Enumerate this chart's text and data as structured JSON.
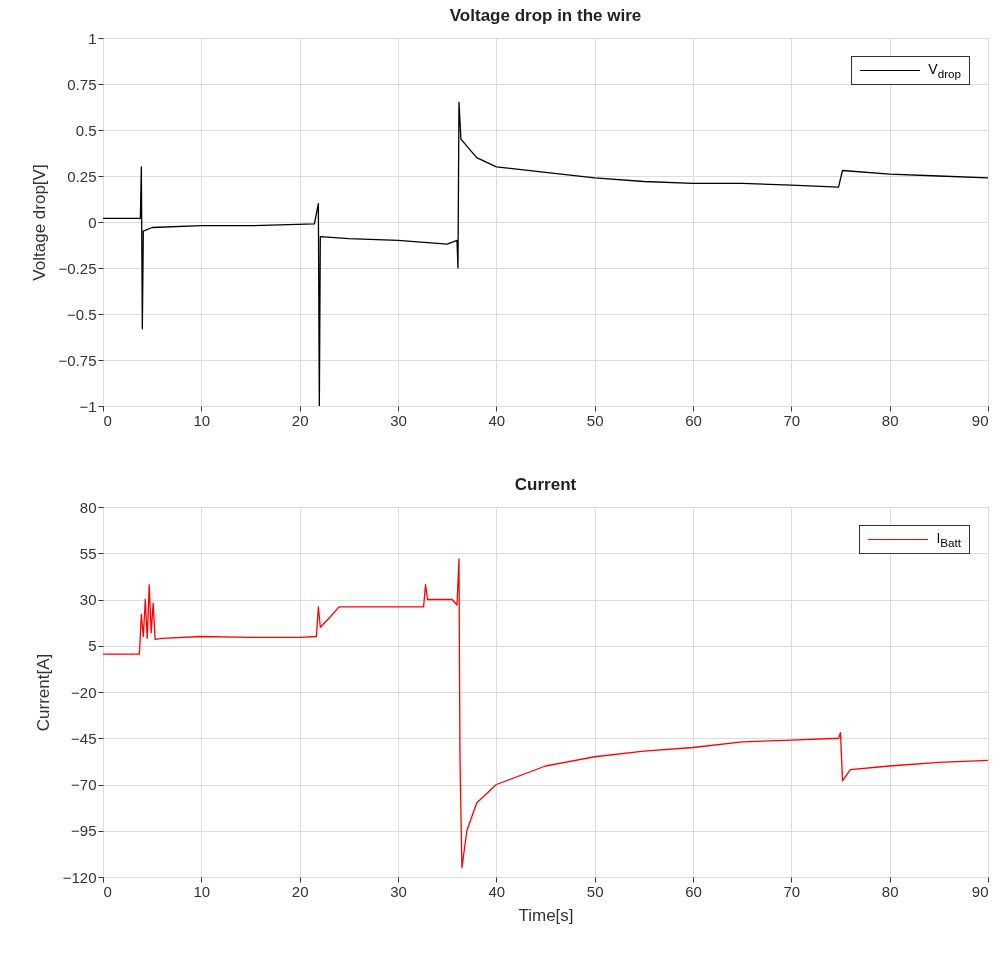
{
  "chart_data": [
    {
      "type": "line",
      "title": "Voltage drop in the wire",
      "ylabel": "Voltage drop[V]",
      "xlim": [
        0,
        90
      ],
      "xticks": [
        0,
        10,
        20,
        30,
        40,
        50,
        60,
        70,
        80,
        90
      ],
      "ylim": [
        -1,
        1
      ],
      "yticks": [
        -1,
        -0.75,
        -0.5,
        -0.25,
        0,
        0.25,
        0.5,
        0.75,
        1
      ],
      "grid": true,
      "legend": "top right",
      "series": [
        {
          "name": "V$_{drop}$",
          "color": "#000000",
          "x": [
            0,
            3.8,
            3.9,
            4.0,
            4.1,
            5,
            10,
            15,
            21.5,
            21.9,
            22.0,
            22.1,
            25,
            30,
            35,
            36.0,
            36.1,
            36.2,
            36.4,
            38,
            40,
            45,
            50,
            55,
            60,
            65,
            70,
            74.8,
            75.2,
            80,
            85,
            90
          ],
          "values": [
            0.02,
            0.02,
            0.3,
            -0.58,
            -0.05,
            -0.03,
            -0.02,
            -0.02,
            -0.01,
            0.1,
            -1,
            -0.08,
            -0.09,
            -0.1,
            -0.12,
            -0.1,
            -0.25,
            0.65,
            0.45,
            0.35,
            0.3,
            0.27,
            0.24,
            0.22,
            0.21,
            0.21,
            0.2,
            0.19,
            0.28,
            0.26,
            0.25,
            0.24
          ]
        }
      ]
    },
    {
      "type": "line",
      "title": "Current",
      "xlabel": "Time[s]",
      "ylabel": "Current[A]",
      "xlim": [
        0,
        90
      ],
      "xticks": [
        0,
        10,
        20,
        30,
        40,
        50,
        60,
        70,
        80,
        90
      ],
      "ylim": [
        -120,
        80
      ],
      "yticks": [
        -120,
        -95,
        -70,
        -45,
        -20,
        5,
        30,
        55,
        80
      ],
      "grid": true,
      "legend": "top right",
      "series": [
        {
          "name": "I$_{Batt}$",
          "color": "#ff0000",
          "x": [
            0,
            3.7,
            3.9,
            4.1,
            4.3,
            4.5,
            4.7,
            4.9,
            5.1,
            5.3,
            6,
            10,
            15,
            20,
            21.7,
            21.9,
            22.1,
            23,
            24,
            25,
            30,
            32.6,
            32.8,
            33,
            35.5,
            36,
            36.2,
            36.3,
            36.5,
            37,
            38,
            40,
            45,
            50,
            55,
            60,
            65,
            70,
            74.8,
            75.0,
            75.2,
            76,
            80,
            85,
            90
          ],
          "values": [
            0.5,
            0.5,
            22,
            10,
            30,
            9,
            38,
            12,
            28,
            8.5,
            9,
            10,
            9.5,
            9.5,
            10,
            26,
            15,
            20,
            26,
            26,
            26,
            26,
            38,
            30,
            30,
            27,
            52,
            -55,
            -115,
            -95,
            -80,
            -70,
            -60,
            -55,
            -52,
            -50,
            -47,
            -46,
            -45,
            -42,
            -68,
            -62,
            -60,
            -58,
            -57
          ]
        }
      ]
    }
  ]
}
